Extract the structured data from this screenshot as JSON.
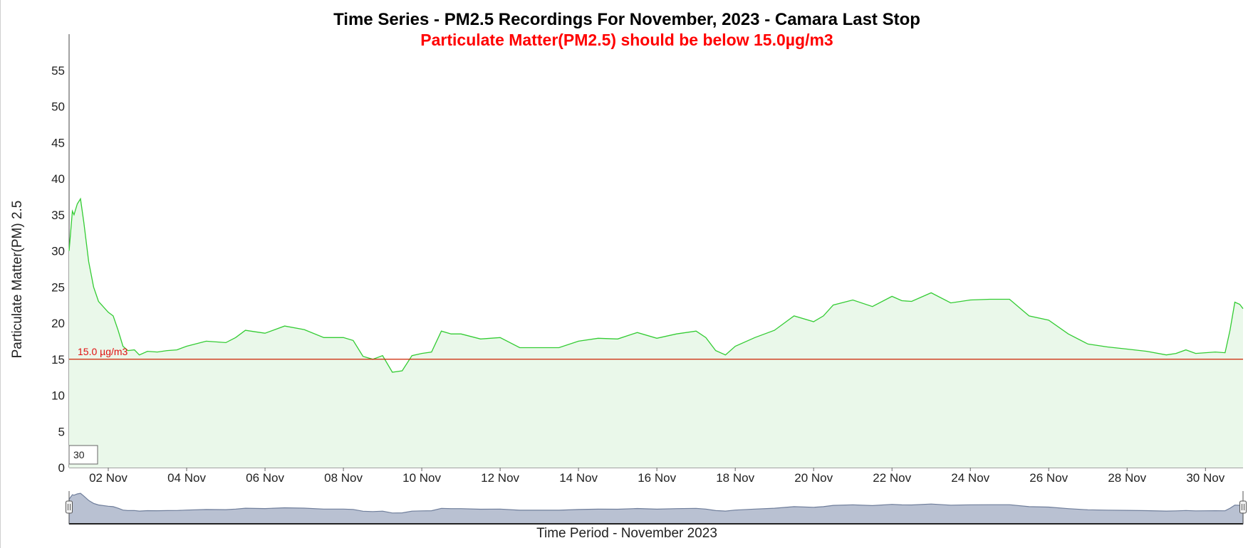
{
  "chart_data": {
    "type": "area",
    "title": "Time Series - PM2.5 Recordings For November, 2023 - Camara Last Stop",
    "subtitle": "Particulate Matter(PM2.5) should be below 15.0µg/m3",
    "xlabel": "Time Period - November 2023",
    "ylabel": "Particulate Matter(PM) 2.5",
    "xlim": [
      "2023-11-01",
      "2023-11-30T23:00"
    ],
    "ylim": [
      0,
      60
    ],
    "y_ticks": [
      0,
      5,
      10,
      15,
      20,
      25,
      30,
      35,
      40,
      45,
      50,
      55
    ],
    "x_ticks": [
      {
        "date": "2023-11-02",
        "label": "02 Nov"
      },
      {
        "date": "2023-11-04",
        "label": "04 Nov"
      },
      {
        "date": "2023-11-06",
        "label": "06 Nov"
      },
      {
        "date": "2023-11-08",
        "label": "08 Nov"
      },
      {
        "date": "2023-11-10",
        "label": "10 Nov"
      },
      {
        "date": "2023-11-12",
        "label": "12 Nov"
      },
      {
        "date": "2023-11-14",
        "label": "14 Nov"
      },
      {
        "date": "2023-11-16",
        "label": "16 Nov"
      },
      {
        "date": "2023-11-18",
        "label": "18 Nov"
      },
      {
        "date": "2023-11-20",
        "label": "20 Nov"
      },
      {
        "date": "2023-11-22",
        "label": "22 Nov"
      },
      {
        "date": "2023-11-24",
        "label": "24 Nov"
      },
      {
        "date": "2023-11-26",
        "label": "26 Nov"
      },
      {
        "date": "2023-11-28",
        "label": "28 Nov"
      },
      {
        "date": "2023-11-30",
        "label": "30 Nov"
      }
    ],
    "grid": false,
    "threshold": {
      "value": 15.0,
      "label": "15.0 µg/m3",
      "color": "#cc2200"
    },
    "range_box_value": "30",
    "series": [
      {
        "color": "#33cc33",
        "fill": "#eaf8ea",
        "x": [
          "2023-11-01T00:00",
          "2023-11-01T02:00",
          "2023-11-01T03:00",
          "2023-11-01T05:00",
          "2023-11-01T07:00",
          "2023-11-01T09:00",
          "2023-11-01T12:00",
          "2023-11-01T15:00",
          "2023-11-01T18:00",
          "2023-11-02T00:00",
          "2023-11-02T03:00",
          "2023-11-02T06:00",
          "2023-11-02T09:00",
          "2023-11-02T12:00",
          "2023-11-02T16:00",
          "2023-11-02T19:00",
          "2023-11-03T00:00",
          "2023-11-03T06:00",
          "2023-11-03T12:00",
          "2023-11-03T18:00",
          "2023-11-04T00:00",
          "2023-11-04T12:00",
          "2023-11-05T00:00",
          "2023-11-05T06:00",
          "2023-11-05T12:00",
          "2023-11-05T18:00",
          "2023-11-06T00:00",
          "2023-11-06T12:00",
          "2023-11-07T00:00",
          "2023-11-07T12:00",
          "2023-11-08T00:00",
          "2023-11-08T06:00",
          "2023-11-08T12:00",
          "2023-11-08T18:00",
          "2023-11-09T00:00",
          "2023-11-09T06:00",
          "2023-11-09T12:00",
          "2023-11-09T18:00",
          "2023-11-10T00:00",
          "2023-11-10T06:00",
          "2023-11-10T12:00",
          "2023-11-10T18:00",
          "2023-11-11T00:00",
          "2023-11-11T12:00",
          "2023-11-12T00:00",
          "2023-11-12T12:00",
          "2023-11-13T00:00",
          "2023-11-13T12:00",
          "2023-11-14T00:00",
          "2023-11-14T12:00",
          "2023-11-15T00:00",
          "2023-11-15T12:00",
          "2023-11-16T00:00",
          "2023-11-16T12:00",
          "2023-11-17T00:00",
          "2023-11-17T06:00",
          "2023-11-17T12:00",
          "2023-11-17T18:00",
          "2023-11-18T00:00",
          "2023-11-18T12:00",
          "2023-11-19T00:00",
          "2023-11-19T12:00",
          "2023-11-20T00:00",
          "2023-11-20T06:00",
          "2023-11-20T12:00",
          "2023-11-21T00:00",
          "2023-11-21T12:00",
          "2023-11-22T00:00",
          "2023-11-22T06:00",
          "2023-11-22T12:00",
          "2023-11-23T00:00",
          "2023-11-23T12:00",
          "2023-11-24T00:00",
          "2023-11-24T12:00",
          "2023-11-25T00:00",
          "2023-11-25T12:00",
          "2023-11-26T00:00",
          "2023-11-26T12:00",
          "2023-11-27T00:00",
          "2023-11-27T12:00",
          "2023-11-28T00:00",
          "2023-11-28T12:00",
          "2023-11-29T00:00",
          "2023-11-29T06:00",
          "2023-11-29T12:00",
          "2023-11-29T18:00",
          "2023-11-30T00:00",
          "2023-11-30T06:00",
          "2023-11-30T12:00",
          "2023-11-30T15:00",
          "2023-11-30T18:00",
          "2023-11-30T21:00",
          "2023-11-30T23:00"
        ],
        "y": [
          30,
          35.5,
          35,
          36.5,
          37.2,
          34,
          28.5,
          25,
          23,
          21.5,
          21,
          19,
          16.8,
          16.2,
          16.3,
          15.6,
          16.1,
          16.0,
          16.2,
          16.3,
          16.8,
          17.5,
          17.3,
          18,
          19,
          18.8,
          18.6,
          19.6,
          19.1,
          18,
          18,
          17.6,
          15.4,
          15,
          15.5,
          13.2,
          13.4,
          15.5,
          15.8,
          16,
          18.9,
          18.5,
          18.5,
          17.8,
          18,
          16.6,
          16.6,
          16.6,
          17.5,
          17.9,
          17.8,
          18.7,
          17.9,
          18.5,
          18.9,
          18.0,
          16.2,
          15.6,
          16.8,
          18.0,
          19,
          21,
          20.2,
          21,
          22.5,
          23.2,
          22.3,
          23.7,
          23.1,
          23,
          24.2,
          22.8,
          23.2,
          23.3,
          23.3,
          21,
          20.4,
          18.5,
          17.1,
          16.7,
          16.4,
          16.1,
          15.6,
          15.8,
          16.3,
          15.8,
          15.9,
          16.0,
          15.9,
          19,
          22.9,
          22.6,
          22.0
        ]
      }
    ]
  }
}
